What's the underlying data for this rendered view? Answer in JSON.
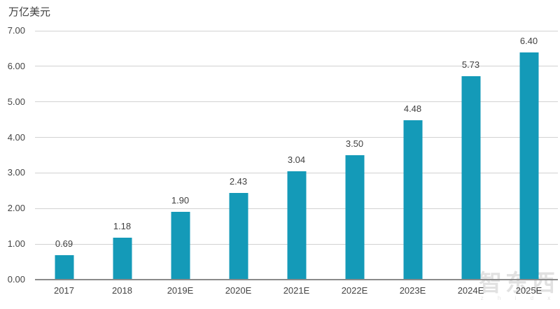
{
  "chart_data": {
    "type": "bar",
    "title": "",
    "ylabel": "万亿美元",
    "xlabel": "",
    "categories": [
      "2017",
      "2018",
      "2019E",
      "2020E",
      "2021E",
      "2022E",
      "2023E",
      "2024E",
      "2025E"
    ],
    "values": [
      0.69,
      1.18,
      1.9,
      2.43,
      3.04,
      3.5,
      4.48,
      5.73,
      6.4
    ],
    "value_labels": [
      "0.69",
      "1.18",
      "1.90",
      "2.43",
      "3.04",
      "3.50",
      "4.48",
      "5.73",
      "6.40"
    ],
    "ylim": [
      0,
      7
    ],
    "ytick_step": 1,
    "ytick_labels": [
      "0.00",
      "1.00",
      "2.00",
      "3.00",
      "4.00",
      "5.00",
      "6.00",
      "7.00"
    ],
    "grid": true,
    "legend": false,
    "bar_color": "#149AB8"
  },
  "colors": {
    "bar": "#149AB8",
    "gridline": "#d2d2d2",
    "axis_line": "#8a8a8a",
    "text": "#404040",
    "watermark": "#c9c9c9"
  },
  "watermark": {
    "text": "智东西",
    "subtext": "z h i d x"
  }
}
